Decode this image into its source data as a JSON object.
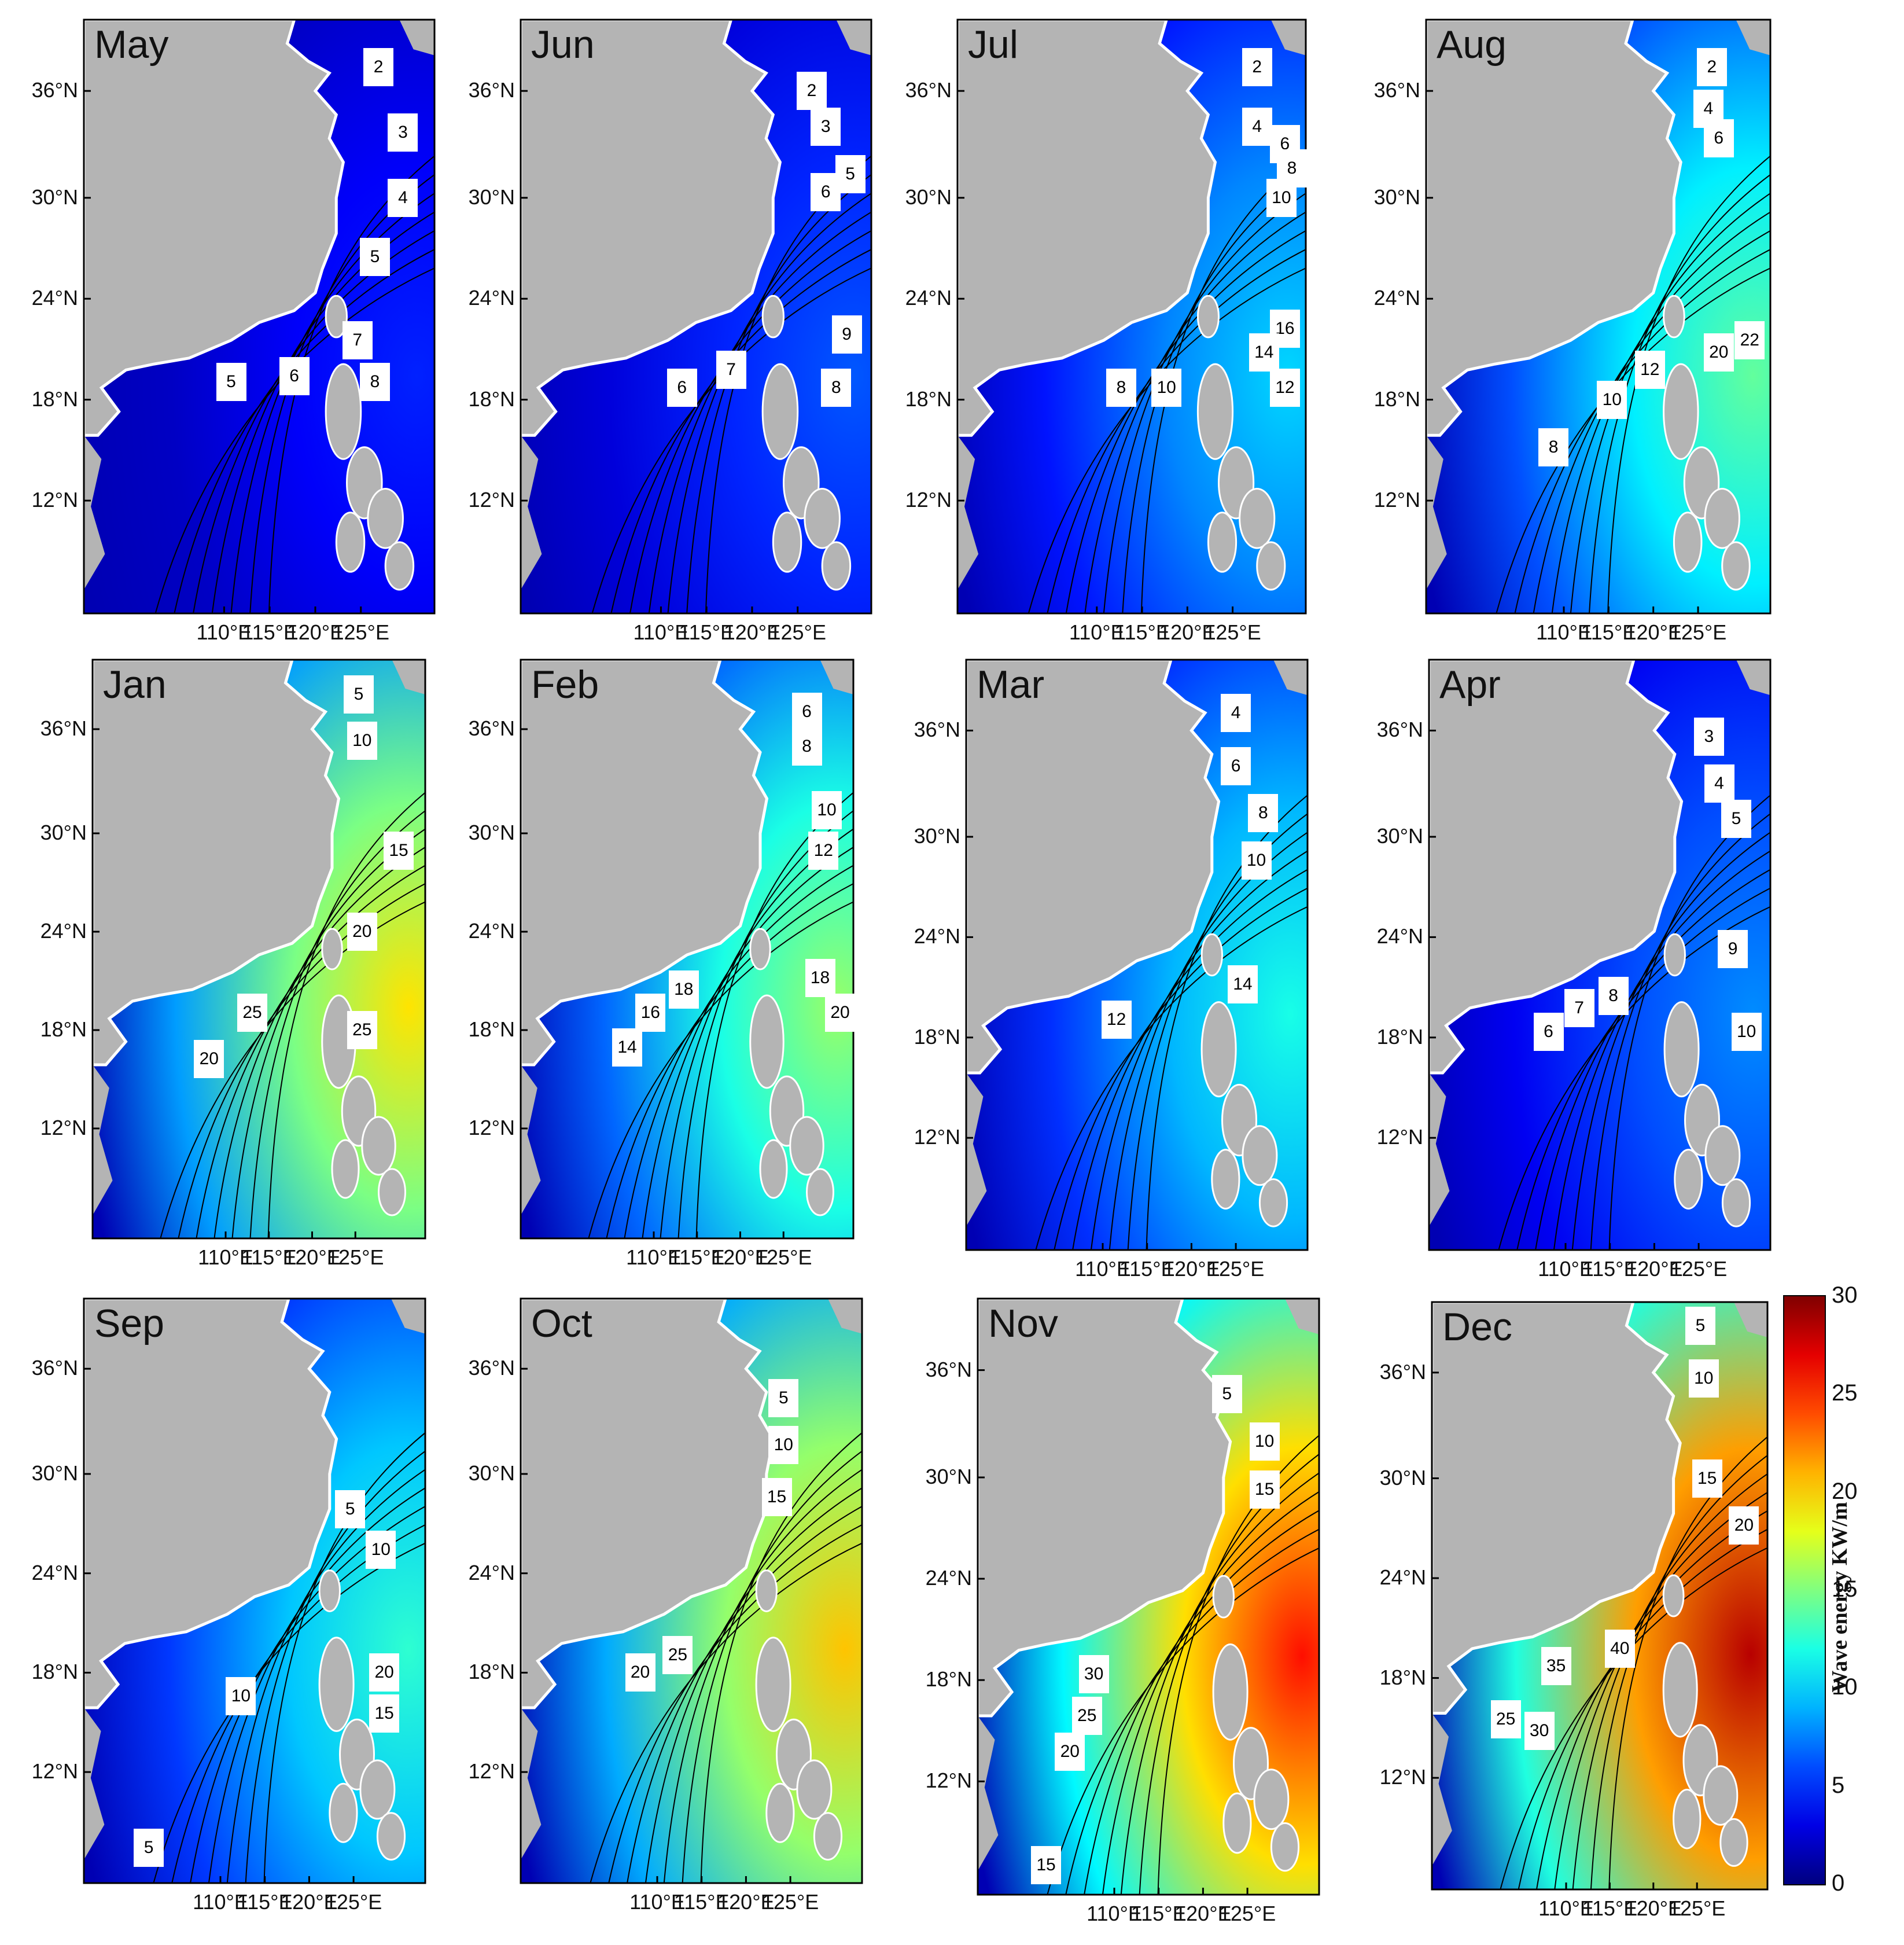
{
  "figure": {
    "lat_ticks": [
      "36°N",
      "30°N",
      "24°N",
      "18°N",
      "12°N"
    ],
    "lon_ticks": [
      "110°E",
      "115°E",
      "120°E",
      "125°E"
    ],
    "colorbar": {
      "title": "Wave energy KW/m",
      "min": 0,
      "max": 30,
      "ticks": [
        "30",
        "25",
        "20",
        "15",
        "10",
        "5",
        "0"
      ],
      "colormap": "jet"
    },
    "colors": {
      "land": "#b4b4b4",
      "low": "#00008c",
      "high": "#800000"
    }
  },
  "panels": [
    {
      "month": "May",
      "energy_level": 0.15,
      "labels": [
        "2",
        "3",
        "4",
        "5",
        "7",
        "5",
        "6",
        "8"
      ]
    },
    {
      "month": "Jun",
      "energy_level": 0.2,
      "labels": [
        "2",
        "3",
        "5",
        "6",
        "9",
        "7",
        "6",
        "8"
      ]
    },
    {
      "month": "Jul",
      "energy_level": 0.32,
      "labels": [
        "2",
        "4",
        "6",
        "8",
        "10",
        "16",
        "14",
        "8",
        "10",
        "12"
      ]
    },
    {
      "month": "Aug",
      "energy_level": 0.45,
      "labels": [
        "2",
        "4",
        "6",
        "20",
        "22",
        "12",
        "10",
        "8"
      ]
    },
    {
      "month": "Jan",
      "energy_level": 0.62,
      "labels": [
        "5",
        "10",
        "15",
        "20",
        "25",
        "20",
        "25"
      ]
    },
    {
      "month": "Feb",
      "energy_level": 0.5,
      "labels": [
        "6",
        "8",
        "10",
        "12",
        "18",
        "18",
        "16",
        "14",
        "20"
      ]
    },
    {
      "month": "Mar",
      "energy_level": 0.38,
      "labels": [
        "4",
        "6",
        "8",
        "10",
        "14",
        "12"
      ]
    },
    {
      "month": "Apr",
      "energy_level": 0.25,
      "labels": [
        "3",
        "4",
        "5",
        "9",
        "7",
        "8",
        "6",
        "10"
      ]
    },
    {
      "month": "Sep",
      "energy_level": 0.4,
      "labels": [
        "5",
        "10",
        "20",
        "15",
        "10",
        "5"
      ]
    },
    {
      "month": "Oct",
      "energy_level": 0.65,
      "labels": [
        "5",
        "10",
        "15",
        "25",
        "20"
      ]
    },
    {
      "month": "Nov",
      "energy_level": 0.82,
      "labels": [
        "5",
        "10",
        "15",
        "30",
        "25",
        "20",
        "15"
      ]
    },
    {
      "month": "Dec",
      "energy_level": 0.9,
      "labels": [
        "5",
        "10",
        "15",
        "20",
        "40",
        "35",
        "25",
        "30"
      ]
    }
  ]
}
